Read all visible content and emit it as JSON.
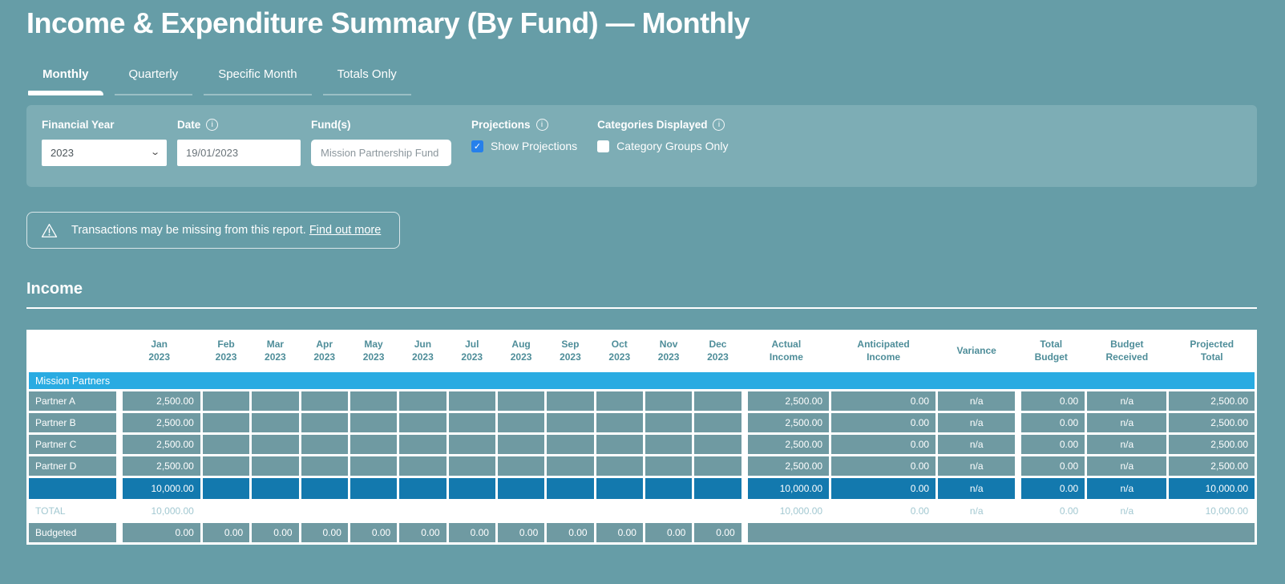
{
  "colors": {
    "bg": "#669da7",
    "panel": "#7dadb5",
    "cell": "#6f9aa2",
    "accent": "#29abe2",
    "dark": "#1379ae",
    "header_text": "#4e8d99",
    "total_text": "#a2c8d1",
    "cb_blue": "#2680eb"
  },
  "header": {
    "title": "Income & Expenditure Summary (By Fund) — Monthly"
  },
  "tabs": [
    {
      "label": "Monthly",
      "active": true
    },
    {
      "label": "Quarterly",
      "active": false
    },
    {
      "label": "Specific Month",
      "active": false
    },
    {
      "label": "Totals Only",
      "active": false
    }
  ],
  "filters": {
    "financial_year": {
      "label": "Financial Year",
      "value": "2023"
    },
    "date": {
      "label": "Date",
      "value": "19/01/2023"
    },
    "funds": {
      "label": "Fund(s)",
      "value": "Mission Partnership Fund"
    },
    "projections": {
      "label": "Projections",
      "checkbox_label": "Show Projections",
      "checked": true
    },
    "categories_displayed": {
      "label": "Categories Displayed",
      "checkbox_label": "Category Groups Only",
      "checked": false
    }
  },
  "warning": {
    "text": "Transactions may be missing from this report.",
    "link_label": "Find out more"
  },
  "income_section": {
    "title": "Income"
  },
  "table": {
    "month_headers": [
      {
        "l1": "Jan",
        "l2": "2023"
      },
      {
        "l1": "Feb",
        "l2": "2023"
      },
      {
        "l1": "Mar",
        "l2": "2023"
      },
      {
        "l1": "Apr",
        "l2": "2023"
      },
      {
        "l1": "May",
        "l2": "2023"
      },
      {
        "l1": "Jun",
        "l2": "2023"
      },
      {
        "l1": "Jul",
        "l2": "2023"
      },
      {
        "l1": "Aug",
        "l2": "2023"
      },
      {
        "l1": "Sep",
        "l2": "2023"
      },
      {
        "l1": "Oct",
        "l2": "2023"
      },
      {
        "l1": "Nov",
        "l2": "2023"
      },
      {
        "l1": "Dec",
        "l2": "2023"
      }
    ],
    "summary_headers": [
      {
        "l1": "Actual",
        "l2": "Income"
      },
      {
        "l1": "Anticipated",
        "l2": "Income"
      },
      {
        "l1": "Variance",
        "l2": ""
      },
      {
        "l1": "Total",
        "l2": "Budget"
      },
      {
        "l1": "Budget",
        "l2": "Received"
      },
      {
        "l1": "Projected",
        "l2": "Total"
      }
    ],
    "group_header": "Mission Partners",
    "rows": [
      {
        "label": "Partner A",
        "jan": "2,500.00",
        "actual": "2,500.00",
        "anticipated": "0.00",
        "variance": "n/a",
        "total_budget": "0.00",
        "budget_received": "n/a",
        "projected_total": "2,500.00"
      },
      {
        "label": "Partner B",
        "jan": "2,500.00",
        "actual": "2,500.00",
        "anticipated": "0.00",
        "variance": "n/a",
        "total_budget": "0.00",
        "budget_received": "n/a",
        "projected_total": "2,500.00"
      },
      {
        "label": "Partner C",
        "jan": "2,500.00",
        "actual": "2,500.00",
        "anticipated": "0.00",
        "variance": "n/a",
        "total_budget": "0.00",
        "budget_received": "n/a",
        "projected_total": "2,500.00"
      },
      {
        "label": "Partner D",
        "jan": "2,500.00",
        "actual": "2,500.00",
        "anticipated": "0.00",
        "variance": "n/a",
        "total_budget": "0.00",
        "budget_received": "n/a",
        "projected_total": "2,500.00"
      }
    ],
    "group_total": {
      "label": "",
      "jan": "10,000.00",
      "actual": "10,000.00",
      "anticipated": "0.00",
      "variance": "n/a",
      "total_budget": "0.00",
      "budget_received": "n/a",
      "projected_total": "10,000.00"
    },
    "total_row": {
      "label": "TOTAL",
      "jan": "10,000.00",
      "actual": "10,000.00",
      "anticipated": "0.00",
      "variance": "n/a",
      "total_budget": "0.00",
      "budget_received": "n/a",
      "projected_total": "10,000.00"
    },
    "budgeted_row": {
      "label": "Budgeted",
      "months": [
        "0.00",
        "0.00",
        "0.00",
        "0.00",
        "0.00",
        "0.00",
        "0.00",
        "0.00",
        "0.00",
        "0.00",
        "0.00",
        "0.00"
      ]
    }
  }
}
